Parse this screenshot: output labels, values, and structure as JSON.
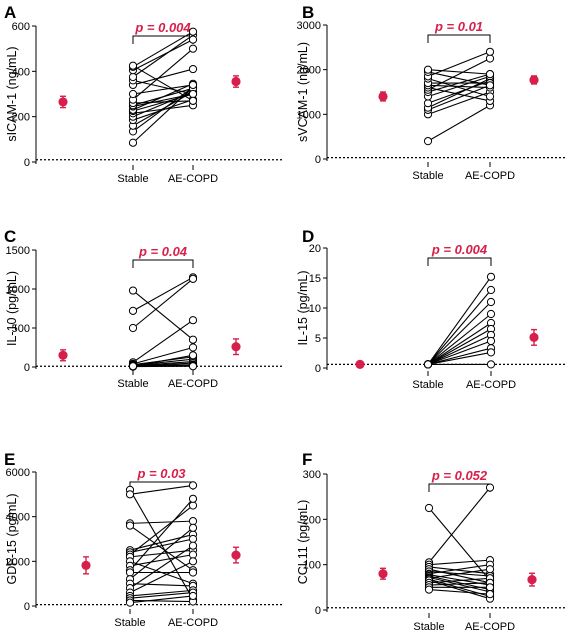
{
  "chart_data": [
    {
      "type": "scatter",
      "panel": "A",
      "ylabel": "sICAM-1 (ng/mL)",
      "ylim": [
        0,
        600
      ],
      "yticks": [
        0,
        200,
        400,
        600
      ],
      "categories": [
        "Stable",
        "AE-COPD"
      ],
      "p_value": "p = 0.004",
      "reference_line": 10,
      "pairs": [
        [
          85,
          330
        ],
        [
          135,
          330
        ],
        [
          160,
          310
        ],
        [
          185,
          275
        ],
        [
          200,
          310
        ],
        [
          215,
          250
        ],
        [
          225,
          300
        ],
        [
          230,
          345
        ],
        [
          245,
          300
        ],
        [
          250,
          325
        ],
        [
          260,
          270
        ],
        [
          275,
          500
        ],
        [
          300,
          340
        ],
        [
          340,
          410
        ],
        [
          360,
          300
        ],
        [
          375,
          560
        ],
        [
          405,
          540
        ],
        [
          420,
          575
        ],
        [
          425,
          270
        ]
      ],
      "mean_left": {
        "value": 265,
        "error": 25
      },
      "mean_right": {
        "value": 355,
        "error": 25
      }
    },
    {
      "type": "scatter",
      "panel": "B",
      "ylabel": "sVCAM-1 (ng/mL)",
      "ylim": [
        0,
        3000
      ],
      "yticks": [
        0,
        1000,
        2000,
        3000
      ],
      "categories": [
        "Stable",
        "AE-COPD"
      ],
      "p_value": "p = 0.01",
      "reference_line": 30,
      "pairs": [
        [
          400,
          1200
        ],
        [
          1000,
          1500
        ],
        [
          1100,
          1650
        ],
        [
          1150,
          1800
        ],
        [
          1250,
          1750
        ],
        [
          1400,
          1850
        ],
        [
          1500,
          1900
        ],
        [
          1550,
          2250
        ],
        [
          1600,
          1300
        ],
        [
          1650,
          1600
        ],
        [
          1700,
          1700
        ],
        [
          1800,
          1400
        ],
        [
          1850,
          2400
        ],
        [
          1950,
          1650
        ],
        [
          2000,
          1900
        ]
      ],
      "mean_left": {
        "value": 1400,
        "error": 100
      },
      "mean_right": {
        "value": 1770,
        "error": 90
      }
    },
    {
      "type": "scatter",
      "panel": "C",
      "ylabel": "IL-10 (pg/mL)",
      "ylim": [
        0,
        1500
      ],
      "yticks": [
        0,
        500,
        1000,
        1500
      ],
      "categories": [
        "Stable",
        "AE-COPD"
      ],
      "p_value": "p = 0.04",
      "reference_line": 10,
      "pairs": [
        [
          980,
          350
        ],
        [
          720,
          1150
        ],
        [
          500,
          1130
        ],
        [
          60,
          600
        ],
        [
          40,
          250
        ],
        [
          30,
          130
        ],
        [
          20,
          100
        ],
        [
          15,
          70
        ],
        [
          10,
          50
        ],
        [
          10,
          30
        ],
        [
          5,
          20
        ],
        [
          5,
          10
        ],
        [
          10,
          150
        ]
      ],
      "mean_left": {
        "value": 150,
        "error": 70
      },
      "mean_right": {
        "value": 260,
        "error": 100
      }
    },
    {
      "type": "scatter",
      "panel": "D",
      "ylabel": "IL-15 (pg/mL)",
      "ylim": [
        0,
        20
      ],
      "yticks": [
        0,
        5,
        10,
        15,
        20
      ],
      "categories": [
        "Stable",
        "AE-COPD"
      ],
      "p_value": "p = 0.004",
      "reference_line": 0.6,
      "pairs": [
        [
          0.6,
          15.2
        ],
        [
          0.6,
          13
        ],
        [
          0.6,
          11
        ],
        [
          0.6,
          9
        ],
        [
          0.6,
          7.5
        ],
        [
          0.6,
          6.5
        ],
        [
          0.6,
          5.5
        ],
        [
          0.6,
          4.5
        ],
        [
          0.6,
          3.3
        ],
        [
          0.6,
          2.6
        ],
        [
          0.6,
          0.6
        ]
      ],
      "mean_left": {
        "value": 0.6,
        "error": 0
      },
      "mean_right": {
        "value": 5.1,
        "error": 1.3
      }
    },
    {
      "type": "scatter",
      "panel": "E",
      "ylabel": "GDF-15 (pg/mL)",
      "ylim": [
        0,
        6000
      ],
      "yticks": [
        0,
        2000,
        4000,
        6000
      ],
      "categories": [
        "Stable",
        "AE-COPD"
      ],
      "p_value": "p = 0.03",
      "reference_line": 60,
      "pairs": [
        [
          5200,
          300
        ],
        [
          5000,
          5400
        ],
        [
          3700,
          3800
        ],
        [
          3600,
          1600
        ],
        [
          2500,
          3200
        ],
        [
          2400,
          3000
        ],
        [
          2300,
          4500
        ],
        [
          2200,
          2500
        ],
        [
          2000,
          1000
        ],
        [
          1800,
          2300
        ],
        [
          1600,
          4800
        ],
        [
          1500,
          1500
        ],
        [
          1200,
          3500
        ],
        [
          1000,
          900
        ],
        [
          800,
          2700
        ],
        [
          600,
          2000
        ],
        [
          450,
          700
        ],
        [
          350,
          600
        ],
        [
          250,
          200
        ],
        [
          150,
          450
        ]
      ],
      "mean_left": {
        "value": 1820,
        "error": 380
      },
      "mean_right": {
        "value": 2280,
        "error": 350
      }
    },
    {
      "type": "scatter",
      "panel": "F",
      "ylabel": "CCL11 (pg/mL)",
      "ylim": [
        0,
        300
      ],
      "yticks": [
        0,
        100,
        200,
        300
      ],
      "categories": [
        "Stable",
        "AE-COPD"
      ],
      "p_value": "p = 0.052",
      "reference_line": 5,
      "pairs": [
        [
          225,
          65
        ],
        [
          105,
          270
        ],
        [
          100,
          110
        ],
        [
          95,
          80
        ],
        [
          90,
          60
        ],
        [
          85,
          75
        ],
        [
          80,
          100
        ],
        [
          78,
          55
        ],
        [
          75,
          45
        ],
        [
          72,
          40
        ],
        [
          70,
          90
        ],
        [
          68,
          30
        ],
        [
          65,
          25
        ],
        [
          60,
          70
        ],
        [
          55,
          60
        ],
        [
          50,
          50
        ],
        [
          45,
          35
        ]
      ],
      "mean_left": {
        "value": 80,
        "error": 12
      },
      "mean_right": {
        "value": 67,
        "error": 14
      }
    }
  ]
}
